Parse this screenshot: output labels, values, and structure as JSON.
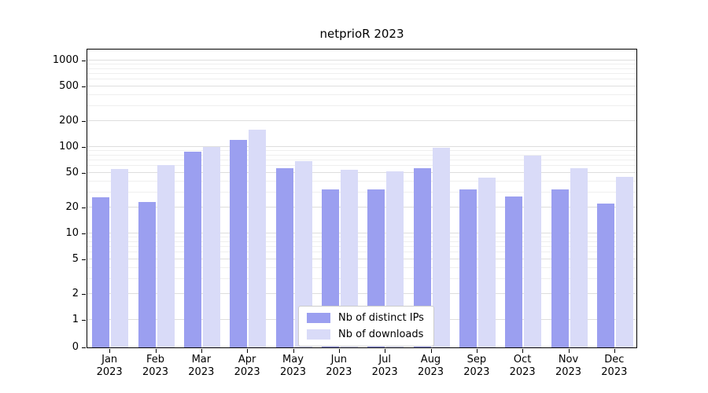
{
  "title": "netprioR 2023",
  "colors": {
    "ips": "#9b9ff0",
    "downloads": "#d9dbf8",
    "grid_major": "#dedede",
    "grid_minor": "#efefef",
    "axis": "#000000",
    "background": "#ffffff",
    "legend_border": "#cccccc"
  },
  "legend": {
    "items": [
      {
        "label": "Nb of distinct IPs",
        "color_key": "ips"
      },
      {
        "label": "Nb of downloads",
        "color_key": "downloads"
      }
    ]
  },
  "chart_data": {
    "type": "bar",
    "title": "netprioR 2023",
    "categories": [
      "Jan 2023",
      "Feb 2023",
      "Mar 2023",
      "Apr 2023",
      "May 2023",
      "Jun 2023",
      "Jul 2023",
      "Aug 2023",
      "Sep 2023",
      "Oct 2023",
      "Nov 2023",
      "Dec 2023"
    ],
    "series": [
      {
        "name": "Nb of distinct IPs",
        "values": [
          26,
          23,
          88,
          120,
          57,
          32,
          32,
          57,
          32,
          27,
          32,
          22
        ]
      },
      {
        "name": "Nb of downloads",
        "values": [
          56,
          62,
          100,
          160,
          68,
          55,
          52,
          97,
          44,
          80,
          57,
          45
        ]
      }
    ],
    "xlabel": "",
    "ylabel": "",
    "yscale": "symlog",
    "yticks": [
      0,
      1,
      2,
      5,
      10,
      20,
      50,
      100,
      200,
      500,
      1000
    ],
    "ylim": [
      0,
      1200
    ],
    "grid": true,
    "legend_position": "lower center"
  }
}
